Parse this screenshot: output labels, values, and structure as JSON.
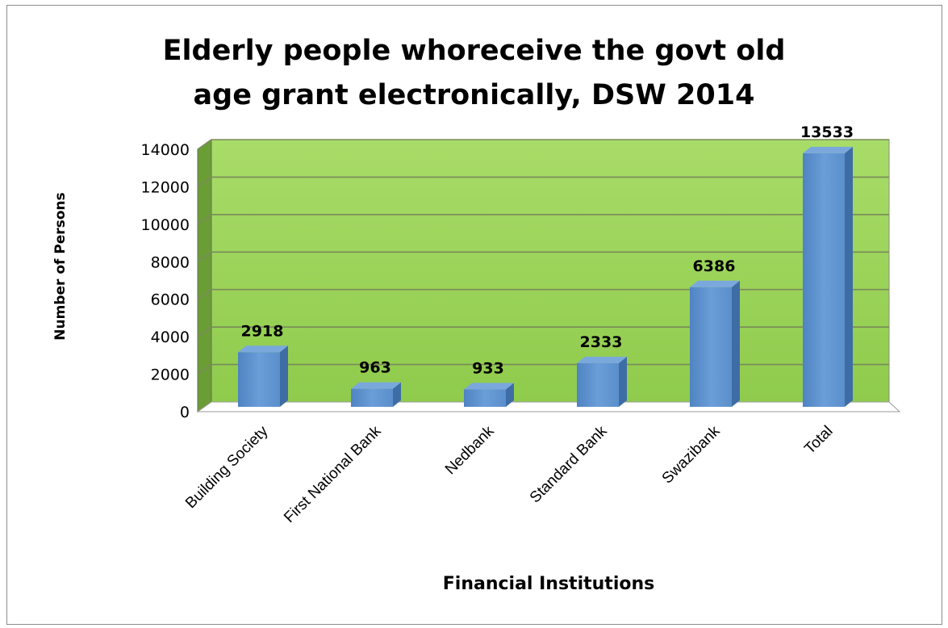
{
  "chart_data": {
    "type": "bar",
    "title_lines": [
      "Elderly people whoreceive the govt old",
      "age grant electronically, DSW 2014"
    ],
    "xlabel": "Financial Institutions",
    "ylabel": "Number of Persons",
    "categories": [
      "Building Society",
      "First National Bank",
      "Nedbank",
      "Standard Bank",
      "Swazibank",
      "Total"
    ],
    "values": [
      2918,
      963,
      933,
      2333,
      6386,
      13533
    ],
    "data_labels": [
      "2918",
      "963",
      "933",
      "2333",
      "6386",
      "13533"
    ],
    "yticks": [
      "0",
      "2000",
      "4000",
      "6000",
      "8000",
      "10000",
      "12000",
      "14000"
    ],
    "ylim": [
      0,
      14000
    ],
    "grid": true,
    "legend": "none",
    "style": "3d-column",
    "colors": {
      "bar": "#5b8fcc",
      "bar_top": "#7aa8dd",
      "bar_side": "#3e6da6",
      "back_wall": "#9dd45a",
      "side_wall": "#6a9e35",
      "floor": "#ffffff",
      "grid": "#7a8a5a"
    }
  }
}
